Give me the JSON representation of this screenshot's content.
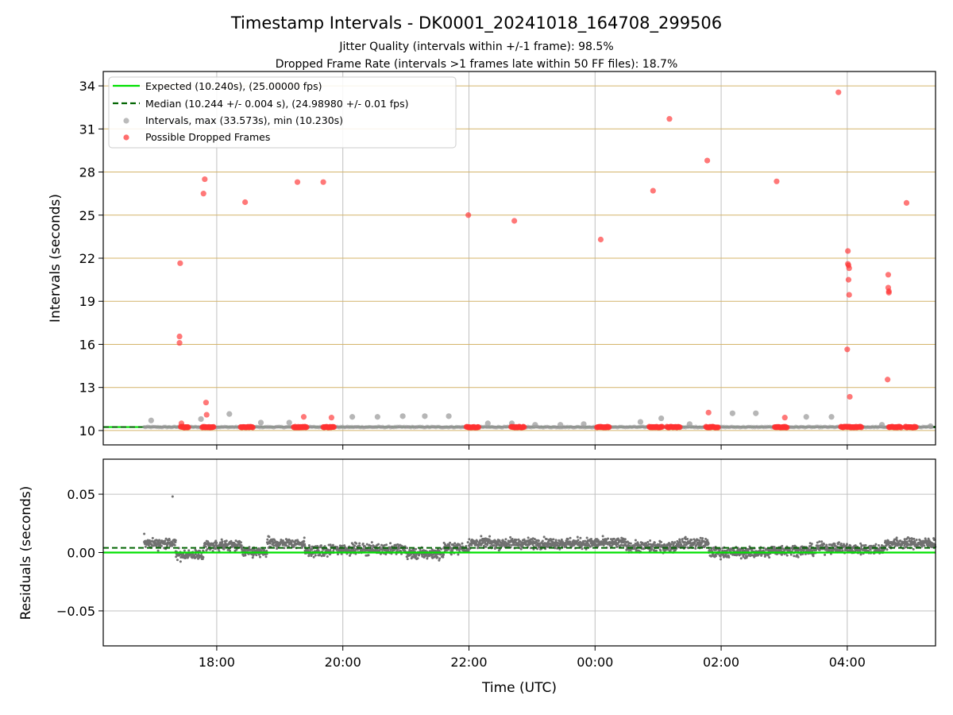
{
  "figure": {
    "title": "Timestamp Intervals - DK0001_20241018_164708_299506",
    "subtitle_1": "Jitter Quality (intervals within +/-1 frame): 98.5%",
    "subtitle_2": "Dropped Frame Rate (intervals >1 frames late within 50 FF files): 18.7%"
  },
  "colors": {
    "expected": "#00e000",
    "median": "#006400",
    "interval": "#9e9e9e",
    "dropped": "#ff3030",
    "residual": "#707070",
    "grid_y_top": "#d4b46a",
    "grid_x": "#c0c0c0"
  },
  "chart_data": [
    {
      "type": "scatter",
      "ylabel": "Intervals (seconds)",
      "xlim_hours": [
        16.2,
        29.4
      ],
      "ylim": [
        9,
        35
      ],
      "yticks": [
        10,
        13,
        16,
        19,
        22,
        25,
        28,
        31,
        34
      ],
      "grid": true,
      "legend_position": "top-left",
      "legend": [
        {
          "label": "Expected (10.240s), (25.00000 fps)",
          "kind": "line-solid",
          "color_key": "expected"
        },
        {
          "label": "Median (10.244 +/- 0.004 s), (24.98980 +/- 0.01 fps)",
          "kind": "line-dashed",
          "color_key": "median"
        },
        {
          "label": "Intervals, max (33.573s), min (10.230s)",
          "kind": "point",
          "color_key": "interval"
        },
        {
          "label": "Possible Dropped Frames",
          "kind": "point",
          "color_key": "dropped"
        }
      ],
      "expected": 10.24,
      "median": 10.244,
      "series": [
        {
          "name": "Possible Dropped Frames",
          "points": [
            [
              17.42,
              21.65
            ],
            [
              17.41,
              16.55
            ],
            [
              17.41,
              16.1
            ],
            [
              17.44,
              10.5
            ],
            [
              17.81,
              27.5
            ],
            [
              17.79,
              26.5
            ],
            [
              17.83,
              11.95
            ],
            [
              17.84,
              11.1
            ],
            [
              18.45,
              25.9
            ],
            [
              19.28,
              27.3
            ],
            [
              19.38,
              10.95
            ],
            [
              19.69,
              27.3
            ],
            [
              19.82,
              10.9
            ],
            [
              21.99,
              25.0
            ],
            [
              22.72,
              24.6
            ],
            [
              24.09,
              23.3
            ],
            [
              24.92,
              26.7
            ],
            [
              25.18,
              31.7
            ],
            [
              25.78,
              28.8
            ],
            [
              25.8,
              11.25
            ],
            [
              26.88,
              27.35
            ],
            [
              27.01,
              10.9
            ],
            [
              27.86,
              33.55
            ],
            [
              28.01,
              22.5
            ],
            [
              28.01,
              21.6
            ],
            [
              28.02,
              21.5
            ],
            [
              28.03,
              21.3
            ],
            [
              28.02,
              20.5
            ],
            [
              28.03,
              19.45
            ],
            [
              28.0,
              15.65
            ],
            [
              28.04,
              12.35
            ],
            [
              28.65,
              20.85
            ],
            [
              28.65,
              19.95
            ],
            [
              28.66,
              19.7
            ],
            [
              28.66,
              19.6
            ],
            [
              28.64,
              13.55
            ],
            [
              28.94,
              25.85
            ]
          ],
          "clusters": [
            [
              17.43,
              17.56
            ],
            [
              17.77,
              17.96
            ],
            [
              18.38,
              18.58
            ],
            [
              19.22,
              19.43
            ],
            [
              19.69,
              19.86
            ],
            [
              21.96,
              22.16
            ],
            [
              22.67,
              22.88
            ],
            [
              24.03,
              24.23
            ],
            [
              24.86,
              25.07
            ],
            [
              25.14,
              25.35
            ],
            [
              25.76,
              25.96
            ],
            [
              26.85,
              27.05
            ],
            [
              27.9,
              28.23
            ],
            [
              28.66,
              28.86
            ],
            [
              28.92,
              29.1
            ]
          ]
        },
        {
          "name": "Intervals, max (33.573s), min (10.230s)",
          "points": [
            [
              16.96,
              10.7
            ],
            [
              17.75,
              10.8
            ],
            [
              18.2,
              11.15
            ],
            [
              18.7,
              10.55
            ],
            [
              19.15,
              10.55
            ],
            [
              20.15,
              10.95
            ],
            [
              20.55,
              10.95
            ],
            [
              20.95,
              11.0
            ],
            [
              21.3,
              11.0
            ],
            [
              21.68,
              11.0
            ],
            [
              22.3,
              10.5
            ],
            [
              22.68,
              10.5
            ],
            [
              23.05,
              10.4
            ],
            [
              23.45,
              10.4
            ],
            [
              23.82,
              10.45
            ],
            [
              24.72,
              10.6
            ],
            [
              25.05,
              10.85
            ],
            [
              25.5,
              10.45
            ],
            [
              26.18,
              11.2
            ],
            [
              26.55,
              11.2
            ],
            [
              27.35,
              10.95
            ],
            [
              27.75,
              10.95
            ],
            [
              28.55,
              10.4
            ],
            [
              29.32,
              10.3
            ]
          ]
        }
      ]
    },
    {
      "type": "scatter",
      "xlabel": "Time (UTC)",
      "ylabel": "Residuals (seconds)",
      "xlim_hours": [
        16.2,
        29.4
      ],
      "ylim": [
        -0.08,
        0.08
      ],
      "yticks": [
        -0.05,
        0.0,
        0.05
      ],
      "ytick_labels": [
        "−0.05",
        "0.00",
        "0.05"
      ],
      "xticks_hours": [
        18,
        20,
        22,
        24,
        26,
        28
      ],
      "xtick_labels": [
        "18:00",
        "20:00",
        "22:00",
        "00:00",
        "02:00",
        "04:00"
      ],
      "grid": true,
      "expected": 0.0,
      "median": 0.004,
      "residual_series": {
        "name": "Residuals",
        "start_hours": 16.85,
        "end_hours": 29.4,
        "outliers": [
          [
            17.3,
            0.048
          ],
          [
            16.85,
            0.016
          ]
        ],
        "levels": [
          [
            16.85,
            17.35,
            0.008
          ],
          [
            17.35,
            17.8,
            -0.002
          ],
          [
            17.8,
            18.4,
            0.006
          ],
          [
            18.4,
            18.8,
            0.0
          ],
          [
            18.8,
            19.4,
            0.008
          ],
          [
            19.4,
            19.8,
            0.001
          ],
          [
            19.8,
            21.0,
            0.003
          ],
          [
            21.0,
            21.6,
            -0.001
          ],
          [
            21.6,
            22.0,
            0.004
          ],
          [
            22.0,
            24.5,
            0.008
          ],
          [
            24.5,
            25.3,
            0.005
          ],
          [
            25.3,
            25.8,
            0.008
          ],
          [
            25.8,
            26.8,
            0.0
          ],
          [
            26.8,
            27.5,
            0.002
          ],
          [
            27.5,
            28.0,
            0.004
          ],
          [
            28.0,
            28.6,
            0.003
          ],
          [
            28.6,
            29.4,
            0.008
          ]
        ]
      }
    }
  ]
}
